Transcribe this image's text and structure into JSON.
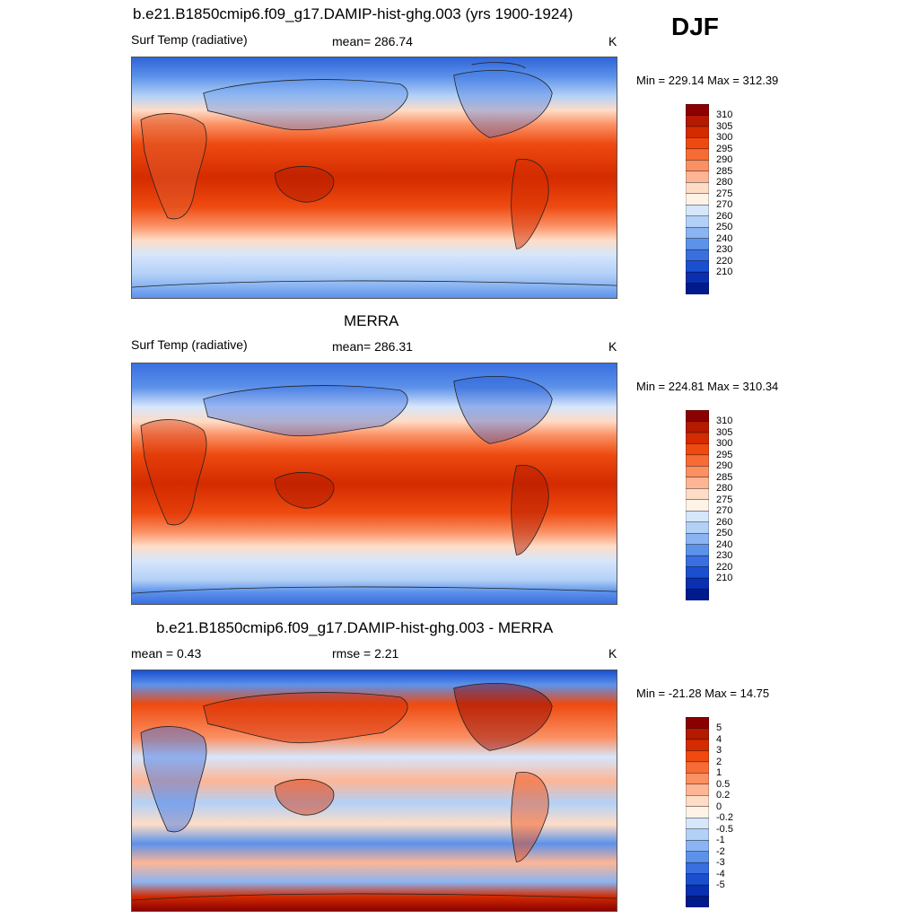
{
  "season": "DJF",
  "panels": [
    {
      "title": "b.e21.B1850cmip6.f09_g17.DAMIP-hist-ghg.003 (yrs 1900-1924)",
      "left_label": "Surf Temp (radiative)",
      "center_label": "mean= 286.74",
      "units": "K",
      "minmax": "Min = 229.14 Max = 312.39",
      "colorbar": {
        "labels": [
          "310",
          "305",
          "300",
          "295",
          "290",
          "285",
          "280",
          "275",
          "270",
          "260",
          "250",
          "240",
          "230",
          "220",
          "210"
        ],
        "colors": [
          "#8b0000",
          "#b31a00",
          "#d42b00",
          "#ee4a10",
          "#f76b35",
          "#fb9063",
          "#fdb596",
          "#fedcc6",
          "#fff3e8",
          "#d6e6fb",
          "#b3d1f7",
          "#8ab4f2",
          "#5c92ea",
          "#3a6fe0",
          "#1a4fd0",
          "#0a2fb0",
          "#001a8c"
        ]
      },
      "chart_data": {
        "type": "heatmap",
        "title": "b.e21.B1850cmip6.f09_g17.DAMIP-hist-ghg.003 (yrs 1900-1924)",
        "variable": "Surf Temp (radiative)",
        "units": "K",
        "mean": 286.74,
        "min": 229.14,
        "max": 312.39,
        "levels": [
          210,
          220,
          230,
          240,
          250,
          260,
          270,
          275,
          280,
          285,
          290,
          295,
          300,
          305,
          310
        ]
      }
    },
    {
      "title": "MERRA",
      "left_label": "Surf Temp (radiative)",
      "center_label": "mean= 286.31",
      "units": "K",
      "minmax": "Min = 224.81 Max = 310.34",
      "colorbar": {
        "labels": [
          "310",
          "305",
          "300",
          "295",
          "290",
          "285",
          "280",
          "275",
          "270",
          "260",
          "250",
          "240",
          "230",
          "220",
          "210"
        ],
        "colors": [
          "#8b0000",
          "#b31a00",
          "#d42b00",
          "#ee4a10",
          "#f76b35",
          "#fb9063",
          "#fdb596",
          "#fedcc6",
          "#fff3e8",
          "#d6e6fb",
          "#b3d1f7",
          "#8ab4f2",
          "#5c92ea",
          "#3a6fe0",
          "#1a4fd0",
          "#0a2fb0",
          "#001a8c"
        ]
      },
      "chart_data": {
        "type": "heatmap",
        "title": "MERRA",
        "variable": "Surf Temp (radiative)",
        "units": "K",
        "mean": 286.31,
        "min": 224.81,
        "max": 310.34,
        "levels": [
          210,
          220,
          230,
          240,
          250,
          260,
          270,
          275,
          280,
          285,
          290,
          295,
          300,
          305,
          310
        ]
      }
    },
    {
      "title": "b.e21.B1850cmip6.f09_g17.DAMIP-hist-ghg.003 - MERRA",
      "left_label": "mean =   0.43",
      "center_label": "rmse =   2.21",
      "units": "K",
      "minmax": "Min = -21.28 Max =  14.75",
      "colorbar": {
        "labels": [
          "5",
          "4",
          "3",
          "2",
          "1",
          "0.5",
          "0.2",
          "0",
          "-0.2",
          "-0.5",
          "-1",
          "-2",
          "-3",
          "-4",
          "-5"
        ],
        "colors": [
          "#8b0000",
          "#b31a00",
          "#d42b00",
          "#ee4a10",
          "#f76b35",
          "#fb9063",
          "#fdb596",
          "#fedcc6",
          "#fff3e8",
          "#d6e6fb",
          "#b3d1f7",
          "#8ab4f2",
          "#5c92ea",
          "#3a6fe0",
          "#1a4fd0",
          "#0a2fb0",
          "#001a8c"
        ]
      },
      "chart_data": {
        "type": "heatmap",
        "title": "b.e21.B1850cmip6.f09_g17.DAMIP-hist-ghg.003 - MERRA",
        "units": "K",
        "mean": 0.43,
        "rmse": 2.21,
        "min": -21.28,
        "max": 14.75,
        "levels": [
          -5,
          -4,
          -3,
          -2,
          -1,
          -0.5,
          -0.2,
          0,
          0.2,
          0.5,
          1,
          2,
          3,
          4,
          5
        ]
      }
    }
  ]
}
